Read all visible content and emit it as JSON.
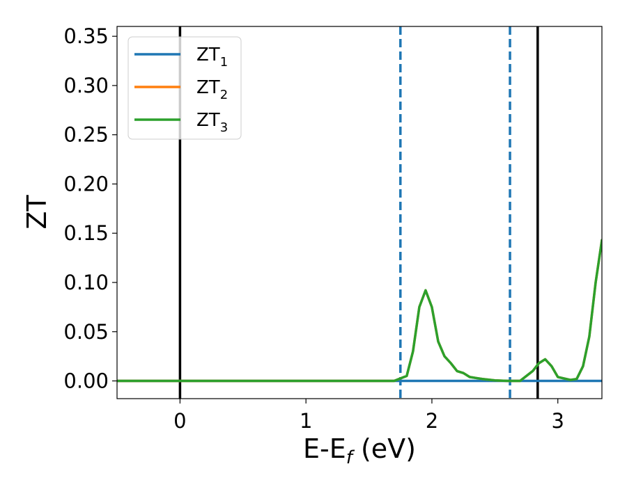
{
  "chart_data": {
    "type": "line",
    "xlabel": "E-E",
    "xlabel_sub": "f",
    "xlabel_unit": " (eV)",
    "ylabel": "ZT",
    "xlim": [
      -0.5,
      3.35
    ],
    "ylim": [
      -0.018,
      0.36
    ],
    "x_ticks": [
      0,
      1,
      2,
      3
    ],
    "x_tick_labels": [
      "0",
      "1",
      "2",
      "3"
    ],
    "y_ticks": [
      0.0,
      0.05,
      0.1,
      0.15,
      0.2,
      0.25,
      0.3,
      0.35
    ],
    "y_tick_labels": [
      "0.00",
      "0.05",
      "0.10",
      "0.15",
      "0.20",
      "0.25",
      "0.30",
      "0.35"
    ],
    "grid": false,
    "legend_position": "top-left",
    "series": [
      {
        "name": "ZT",
        "name_sub": "1",
        "color": "#1f77b4",
        "x": [
          -0.5,
          3.35
        ],
        "y": [
          0.0,
          0.0
        ]
      },
      {
        "name": "ZT",
        "name_sub": "2",
        "color": "#ff7f0e",
        "x": [
          -0.5,
          1.7,
          1.8,
          1.85,
          1.9,
          1.95,
          2.0,
          2.05,
          2.1,
          2.15,
          2.2,
          2.25,
          2.3,
          2.35,
          2.4,
          2.5,
          2.6,
          2.7,
          2.8,
          2.85,
          2.9,
          2.95,
          3.0,
          3.1,
          3.15,
          3.2,
          3.25,
          3.3,
          3.35
        ],
        "y": [
          0.0,
          0.0,
          0.005,
          0.03,
          0.075,
          0.092,
          0.075,
          0.04,
          0.025,
          0.018,
          0.01,
          0.008,
          0.004,
          0.003,
          0.002,
          0.0005,
          0.0,
          0.0,
          0.01,
          0.018,
          0.022,
          0.015,
          0.004,
          0.001,
          0.002,
          0.015,
          0.045,
          0.1,
          0.143
        ]
      },
      {
        "name": "ZT",
        "name_sub": "3",
        "color": "#2ca02c",
        "x": [
          -0.5,
          1.7,
          1.8,
          1.85,
          1.9,
          1.95,
          2.0,
          2.05,
          2.1,
          2.15,
          2.2,
          2.25,
          2.3,
          2.35,
          2.4,
          2.5,
          2.6,
          2.7,
          2.8,
          2.85,
          2.9,
          2.95,
          3.0,
          3.1,
          3.15,
          3.2,
          3.25,
          3.3,
          3.35
        ],
        "y": [
          0.0,
          0.0,
          0.005,
          0.03,
          0.075,
          0.092,
          0.075,
          0.04,
          0.025,
          0.018,
          0.01,
          0.008,
          0.004,
          0.003,
          0.002,
          0.0005,
          0.0,
          0.0,
          0.01,
          0.018,
          0.022,
          0.015,
          0.004,
          0.001,
          0.002,
          0.015,
          0.045,
          0.1,
          0.143
        ]
      }
    ],
    "vertical_lines": [
      {
        "x": 0.0,
        "color": "#000000",
        "style": "solid"
      },
      {
        "x": 1.75,
        "color": "#1f77b4",
        "style": "dashed"
      },
      {
        "x": 2.62,
        "color": "#1f77b4",
        "style": "dashed"
      },
      {
        "x": 2.84,
        "color": "#000000",
        "style": "solid"
      }
    ]
  }
}
